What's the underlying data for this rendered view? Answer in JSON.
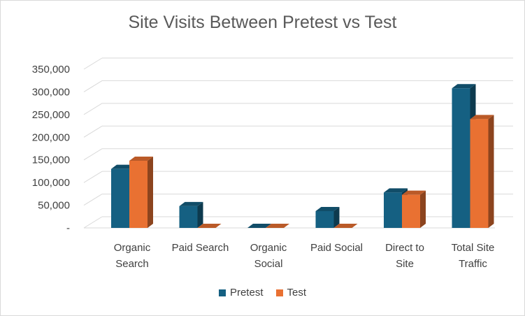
{
  "chart_data": {
    "type": "bar",
    "title": "Site Visits Between Pretest vs Test",
    "categories": [
      [
        "Organic",
        "Search"
      ],
      [
        "Paid Search"
      ],
      [
        "Organic",
        "Social"
      ],
      [
        "Paid Social"
      ],
      [
        "Direct to",
        "Site"
      ],
      [
        "Total Site",
        "Traffic"
      ]
    ],
    "series": [
      {
        "name": "Pretest",
        "color": "#156082",
        "values": [
          130000,
          48000,
          0,
          37000,
          78000,
          308000
        ]
      },
      {
        "name": "Test",
        "color": "#e97132",
        "values": [
          148000,
          0,
          0,
          0,
          73000,
          240000
        ]
      }
    ],
    "y_ticks": [
      "-",
      "50,000",
      "100,000",
      "150,000",
      "200,000",
      "250,000",
      "300,000",
      "350,000"
    ],
    "ylim": [
      0,
      350000
    ],
    "grid": true,
    "style": "3d-clustered-column",
    "legend_position": "bottom"
  }
}
